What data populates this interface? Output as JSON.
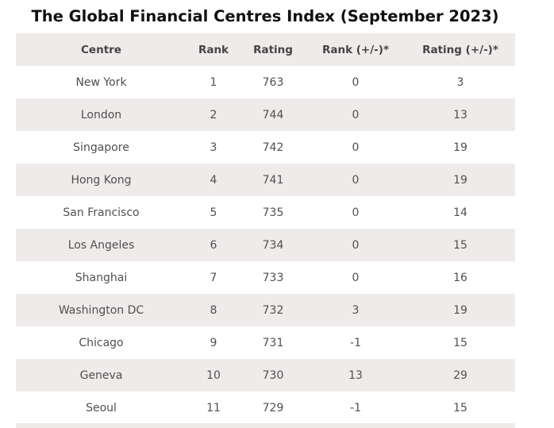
{
  "chart_data": {
    "type": "table",
    "title": "The Global Financial Centres Index (September 2023)",
    "columns": [
      "Centre",
      "Rank",
      "Rating",
      "Rank (+/-)*",
      "Rating (+/-)*"
    ],
    "rows": [
      [
        "New York",
        "1",
        "763",
        "0",
        "3"
      ],
      [
        "London",
        "2",
        "744",
        "0",
        "13"
      ],
      [
        "Singapore",
        "3",
        "742",
        "0",
        "19"
      ],
      [
        "Hong Kong",
        "4",
        "741",
        "0",
        "19"
      ],
      [
        "San Francisco",
        "5",
        "735",
        "0",
        "14"
      ],
      [
        "Los Angeles",
        "6",
        "734",
        "0",
        "15"
      ],
      [
        "Shanghai",
        "7",
        "733",
        "0",
        "16"
      ],
      [
        "Washington DC",
        "8",
        "732",
        "3",
        "19"
      ],
      [
        "Chicago",
        "9",
        "731",
        "-1",
        "15"
      ],
      [
        "Geneva",
        "10",
        "730",
        "13",
        "29"
      ],
      [
        "Seoul",
        "11",
        "729",
        "-1",
        "15"
      ]
    ]
  },
  "colors": {
    "stripe": "#efebea",
    "title": "#111111",
    "text": "#505050"
  }
}
